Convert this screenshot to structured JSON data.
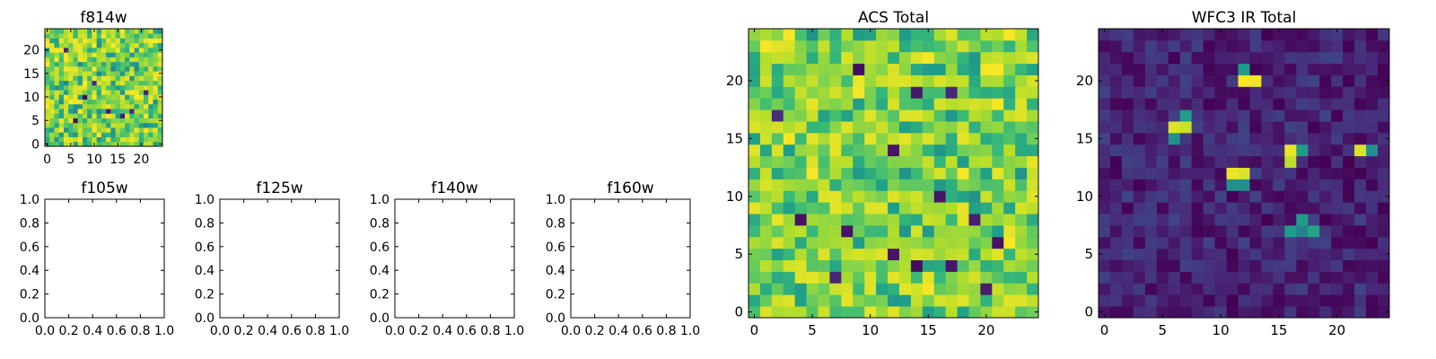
{
  "chart_data": [
    {
      "id": "f814w",
      "type": "heatmap",
      "title": "f814w",
      "size": 25,
      "xlim": [
        -0.5,
        24.5
      ],
      "ylim": [
        -0.5,
        24.5
      ],
      "xticks": [
        0,
        5,
        10,
        15,
        20
      ],
      "yticks": [
        0,
        5,
        10,
        15,
        20
      ],
      "colormap": "viridis",
      "pattern": "noise",
      "seed": 11,
      "range": [
        0.45,
        1.0
      ],
      "lows": [
        [
          4,
          20
        ],
        [
          10,
          13
        ],
        [
          8,
          10
        ],
        [
          18,
          7
        ],
        [
          13,
          7
        ],
        [
          6,
          5
        ],
        [
          16,
          6
        ],
        [
          21,
          11
        ]
      ],
      "highs": []
    },
    {
      "id": "f105w",
      "type": "table",
      "title": "f105w",
      "empty": true,
      "xlim": [
        0,
        1
      ],
      "ylim": [
        0,
        1
      ],
      "xticks": [
        "0.0",
        "0.2",
        "0.4",
        "0.6",
        "0.8",
        "1.0"
      ],
      "yticks": [
        "0.0",
        "0.2",
        "0.4",
        "0.6",
        "0.8",
        "1.0"
      ]
    },
    {
      "id": "f125w",
      "type": "table",
      "title": "f125w",
      "empty": true,
      "xlim": [
        0,
        1
      ],
      "ylim": [
        0,
        1
      ],
      "xticks": [
        "0.0",
        "0.2",
        "0.4",
        "0.6",
        "0.8",
        "1.0"
      ],
      "yticks": [
        "0.0",
        "0.2",
        "0.4",
        "0.6",
        "0.8",
        "1.0"
      ]
    },
    {
      "id": "f140w",
      "type": "table",
      "title": "f140w",
      "empty": true,
      "xlim": [
        0,
        1
      ],
      "ylim": [
        0,
        1
      ],
      "xticks": [
        "0.0",
        "0.2",
        "0.4",
        "0.6",
        "0.8",
        "1.0"
      ],
      "yticks": [
        "0.0",
        "0.2",
        "0.4",
        "0.6",
        "0.8",
        "1.0"
      ]
    },
    {
      "id": "f160w",
      "type": "table",
      "title": "f160w",
      "empty": true,
      "xlim": [
        0,
        1
      ],
      "ylim": [
        0,
        1
      ],
      "xticks": [
        "0.0",
        "0.2",
        "0.4",
        "0.6",
        "0.8",
        "1.0"
      ],
      "yticks": [
        "0.0",
        "0.2",
        "0.4",
        "0.6",
        "0.8",
        "1.0"
      ]
    },
    {
      "id": "acs_total",
      "type": "heatmap",
      "title": "ACS Total",
      "size": 25,
      "xlim": [
        -0.5,
        24.5
      ],
      "ylim": [
        -0.5,
        24.5
      ],
      "xticks": [
        0,
        5,
        10,
        15,
        20
      ],
      "yticks": [
        0,
        5,
        10,
        15,
        20
      ],
      "colormap": "viridis",
      "pattern": "noise",
      "seed": 29,
      "range": [
        0.5,
        0.97
      ],
      "lows": [
        [
          9,
          21
        ],
        [
          14,
          19
        ],
        [
          17,
          19
        ],
        [
          2,
          17
        ],
        [
          12,
          14
        ],
        [
          4,
          8
        ],
        [
          16,
          10
        ],
        [
          19,
          8
        ],
        [
          8,
          7
        ],
        [
          21,
          6
        ],
        [
          17,
          4
        ],
        [
          7,
          3
        ],
        [
          12,
          5
        ],
        [
          14,
          4
        ],
        [
          20,
          2
        ]
      ],
      "highs": [
        [
          1,
          23
        ],
        [
          3,
          24
        ],
        [
          22,
          24
        ],
        [
          21,
          21
        ],
        [
          20,
          21
        ],
        [
          9,
          19
        ],
        [
          15,
          22
        ],
        [
          18,
          12
        ],
        [
          21,
          18
        ],
        [
          5,
          12
        ],
        [
          3,
          15
        ],
        [
          22,
          6
        ],
        [
          15,
          2
        ]
      ]
    },
    {
      "id": "wfc3ir_total",
      "type": "heatmap",
      "title": "WFC3 IR Total",
      "size": 25,
      "xlim": [
        -0.5,
        24.5
      ],
      "ylim": [
        -0.5,
        24.5
      ],
      "xticks": [
        0,
        5,
        10,
        15,
        20
      ],
      "yticks": [
        0,
        5,
        10,
        15,
        20
      ],
      "colormap": "viridis",
      "pattern": "sources",
      "seed": 53,
      "range": [
        0.0,
        0.2
      ],
      "sources": [
        [
          12,
          20,
          1.0
        ],
        [
          13,
          20,
          0.98
        ],
        [
          12,
          21,
          0.55
        ],
        [
          6,
          16,
          0.95
        ],
        [
          7,
          16,
          0.92
        ],
        [
          7,
          17,
          0.55
        ],
        [
          6,
          15,
          0.5
        ],
        [
          16,
          14,
          0.97
        ],
        [
          16,
          13,
          0.9
        ],
        [
          17,
          14,
          0.55
        ],
        [
          22,
          14,
          0.95
        ],
        [
          23,
          14,
          0.5
        ],
        [
          11,
          12,
          0.97
        ],
        [
          12,
          12,
          0.95
        ],
        [
          12,
          11,
          0.5
        ],
        [
          11,
          11,
          0.5
        ],
        [
          16,
          7,
          0.55
        ],
        [
          17,
          8,
          0.55
        ],
        [
          18,
          7,
          0.58
        ],
        [
          17,
          7,
          0.45
        ]
      ]
    }
  ]
}
